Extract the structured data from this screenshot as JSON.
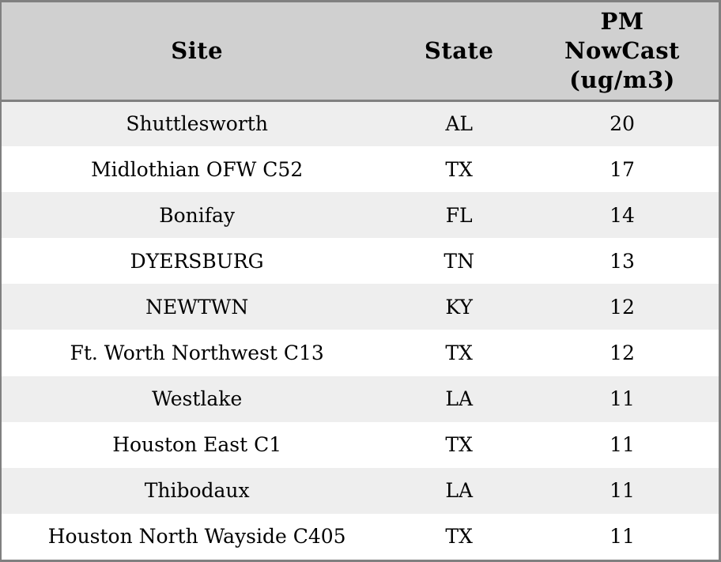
{
  "colors": {
    "header_bg": "#d0d0d0",
    "row_alt_bg": "#eeeeee",
    "row_bg": "#ffffff",
    "border": "#808080",
    "text": "#000000"
  },
  "chart_data": {
    "type": "table",
    "columns": [
      "Site",
      "State",
      "PM NowCast (ug/m3)"
    ],
    "rows": [
      {
        "site": "Shuttlesworth",
        "state": "AL",
        "pm_nowcast": "20"
      },
      {
        "site": "Midlothian OFW C52",
        "state": "TX",
        "pm_nowcast": "17"
      },
      {
        "site": "Bonifay",
        "state": "FL",
        "pm_nowcast": "14"
      },
      {
        "site": "DYERSBURG",
        "state": "TN",
        "pm_nowcast": "13"
      },
      {
        "site": "NEWTWN",
        "state": "KY",
        "pm_nowcast": "12"
      },
      {
        "site": "Ft. Worth Northwest C13",
        "state": "TX",
        "pm_nowcast": "12"
      },
      {
        "site": "Westlake",
        "state": "LA",
        "pm_nowcast": "11"
      },
      {
        "site": "Houston East C1",
        "state": "TX",
        "pm_nowcast": "11"
      },
      {
        "site": "Thibodaux",
        "state": "LA",
        "pm_nowcast": "11"
      },
      {
        "site": "Houston North Wayside C405",
        "state": "TX",
        "pm_nowcast": "11"
      }
    ]
  }
}
